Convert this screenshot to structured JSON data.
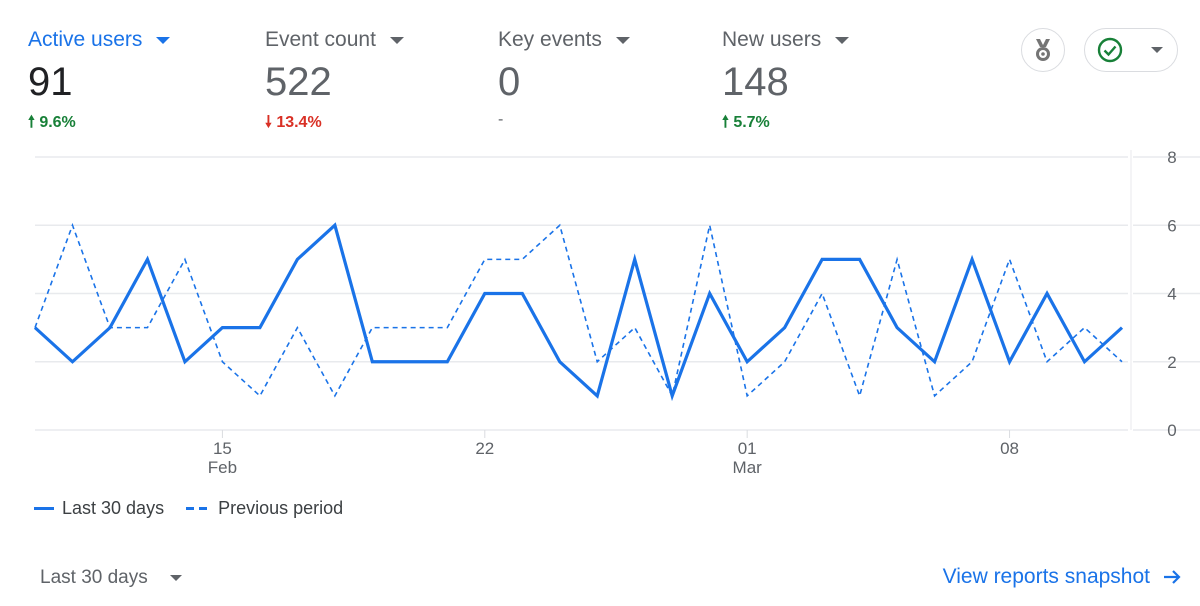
{
  "metrics": [
    {
      "label": "Active users",
      "value": "91",
      "delta": "9.6%",
      "direction": "up",
      "active": true
    },
    {
      "label": "Event count",
      "value": "522",
      "delta": "13.4%",
      "direction": "down",
      "active": false
    },
    {
      "label": "Key events",
      "value": "0",
      "delta": "-",
      "direction": "none",
      "active": false
    },
    {
      "label": "New users",
      "value": "148",
      "delta": "5.7%",
      "direction": "up",
      "active": false
    }
  ],
  "header_icons": {
    "medal": "medal-icon",
    "status": "check-circle-icon"
  },
  "colors": {
    "accent": "#1a73e8",
    "up": "#188038",
    "down": "#d93025",
    "status_ok": "#188038"
  },
  "chart_data": {
    "type": "line",
    "x": [
      "Feb 10",
      "Feb 11",
      "Feb 12",
      "Feb 13",
      "Feb 14",
      "Feb 15",
      "Feb 16",
      "Feb 17",
      "Feb 18",
      "Feb 19",
      "Feb 20",
      "Feb 21",
      "Feb 22",
      "Feb 23",
      "Feb 24",
      "Feb 25",
      "Feb 26",
      "Feb 27",
      "Feb 28",
      "Mar 01",
      "Mar 02",
      "Mar 03",
      "Mar 04",
      "Mar 05",
      "Mar 06",
      "Mar 07",
      "Mar 08",
      "Mar 09",
      "Mar 10",
      "Mar 11"
    ],
    "x_ticks": [
      {
        "index": 5,
        "label": "15",
        "sublabel": "Feb"
      },
      {
        "index": 12,
        "label": "22",
        "sublabel": ""
      },
      {
        "index": 19,
        "label": "01",
        "sublabel": "Mar"
      },
      {
        "index": 26,
        "label": "08",
        "sublabel": ""
      }
    ],
    "y_ticks": [
      "0",
      "2",
      "4",
      "6",
      "8"
    ],
    "ylim": [
      0,
      8
    ],
    "y_axis_side": "right",
    "grid": true,
    "legend_position": "bottom-left",
    "series": [
      {
        "name": "Last 30 days",
        "style": "solid",
        "values": [
          3,
          2,
          3,
          5,
          2,
          3,
          3,
          5,
          6,
          2,
          2,
          2,
          4,
          4,
          2,
          1,
          5,
          1,
          4,
          2,
          3,
          5,
          5,
          3,
          2,
          5,
          2,
          4,
          2,
          3
        ]
      },
      {
        "name": "Previous period",
        "style": "dashed",
        "values": [
          3,
          6,
          3,
          3,
          5,
          2,
          1,
          3,
          1,
          3,
          3,
          3,
          5,
          5,
          6,
          2,
          3,
          1,
          6,
          1,
          2,
          4,
          1,
          5,
          1,
          2,
          5,
          2,
          3,
          2
        ]
      }
    ]
  },
  "footer": {
    "range_label": "Last 30 days",
    "snapshot_link": "View reports snapshot"
  }
}
